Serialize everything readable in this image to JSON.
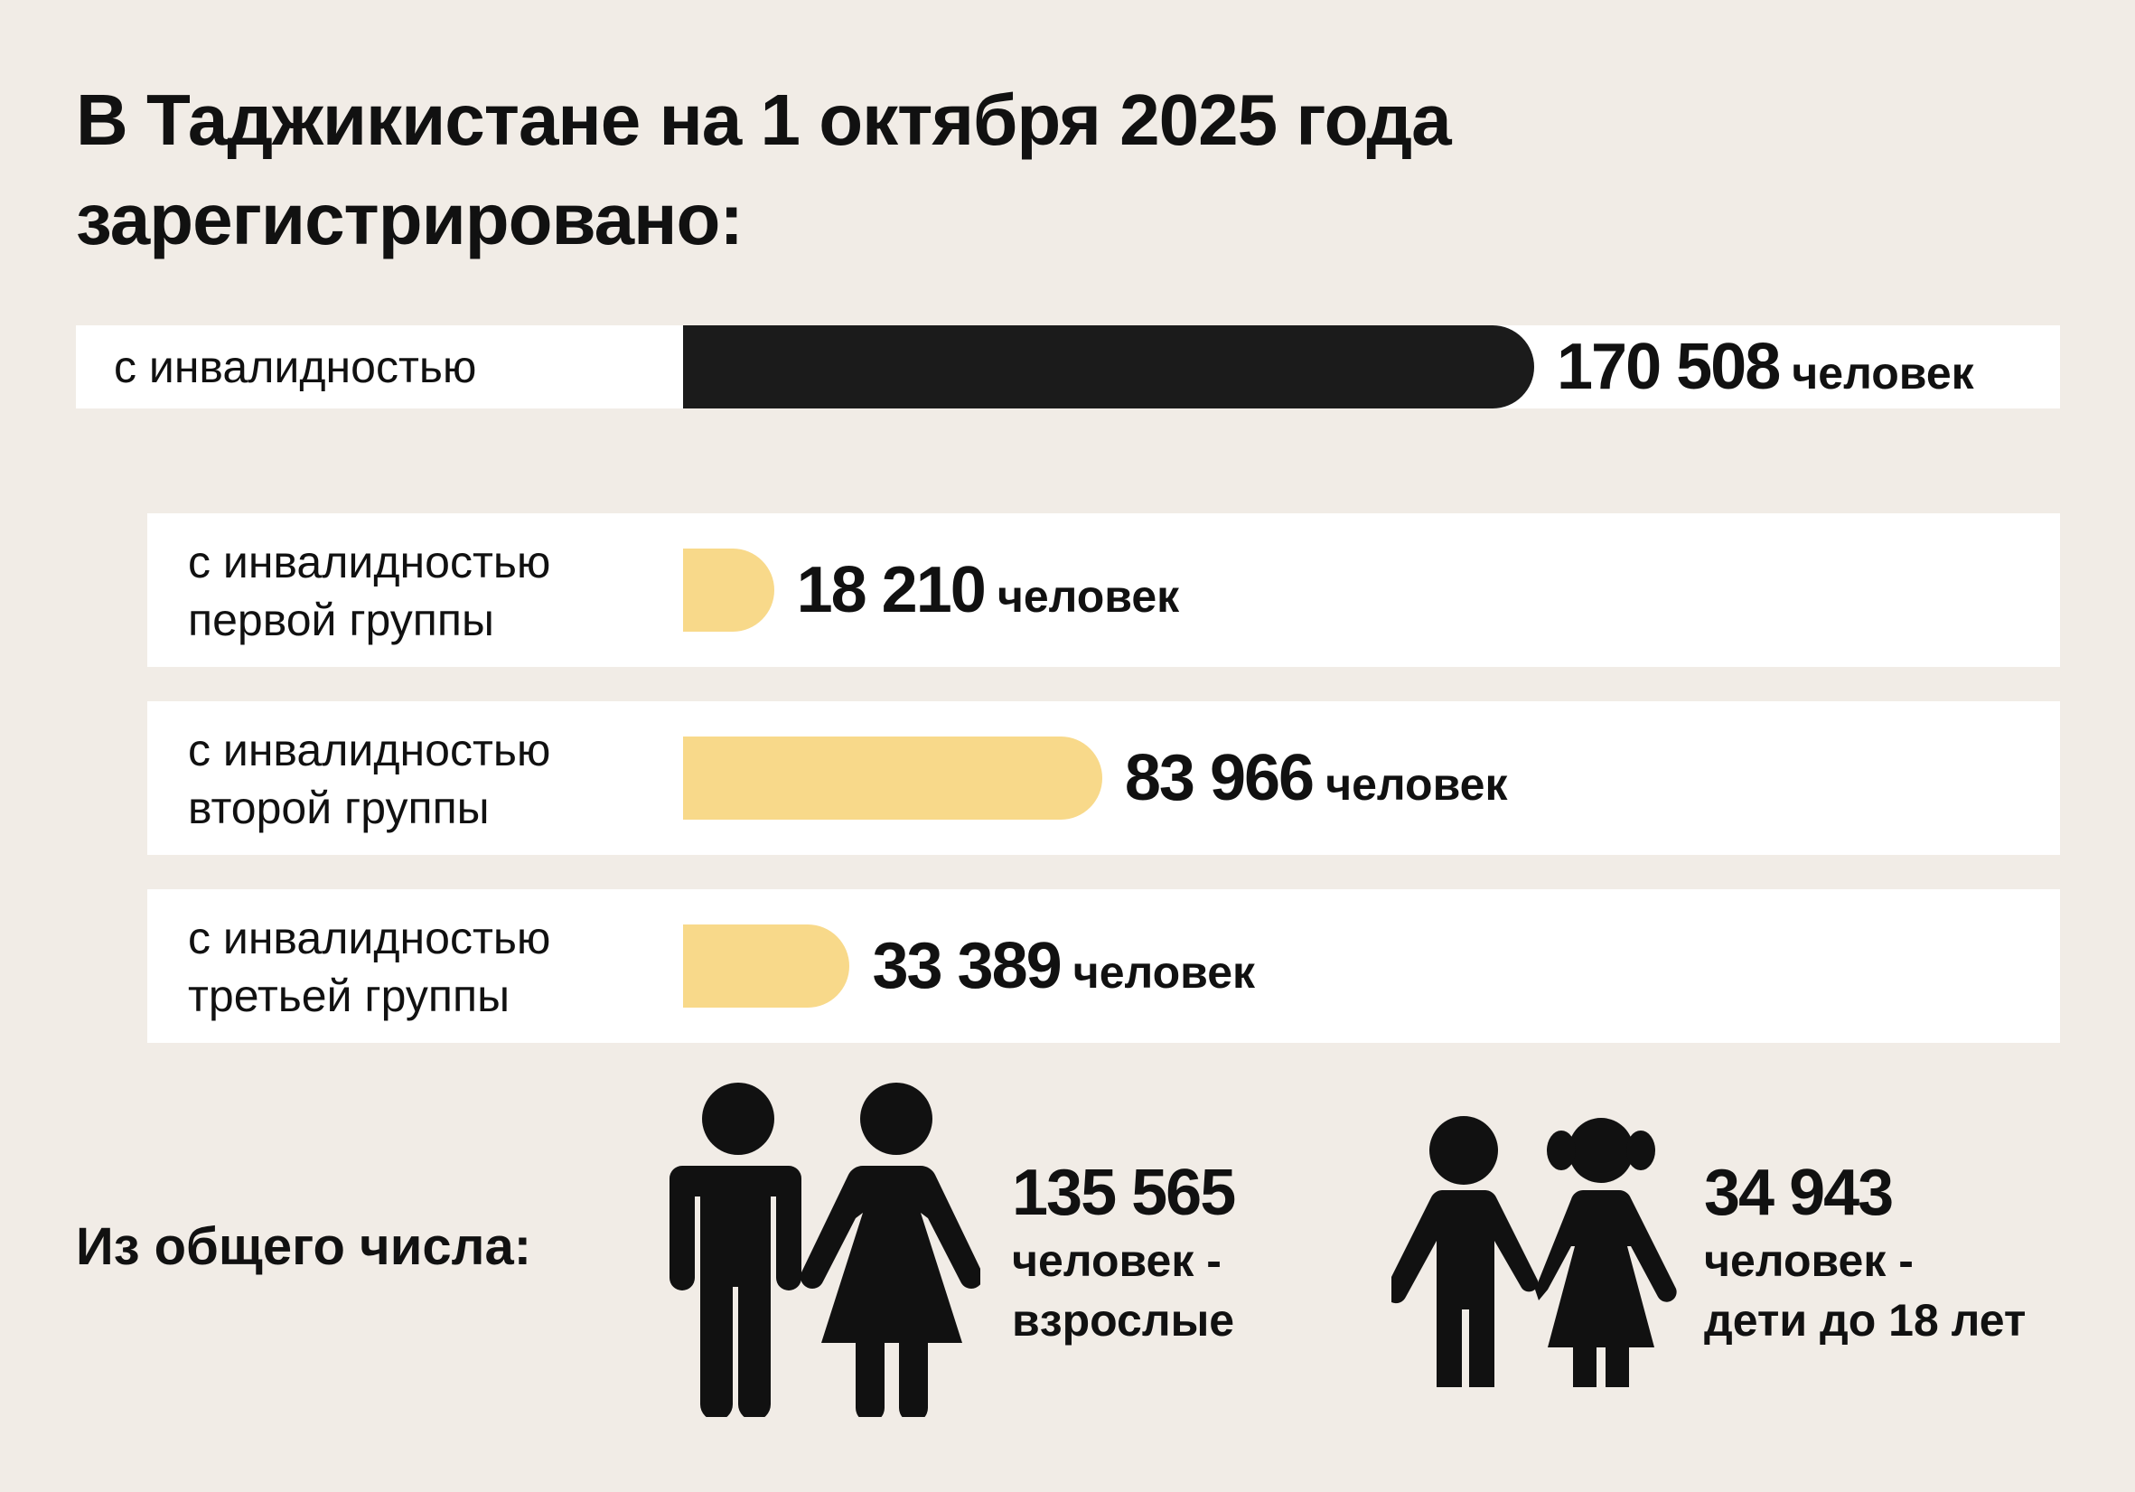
{
  "title": {
    "line1": "В Таджикистане на 1 октября 2025 года",
    "line2": "зарегистрировано:"
  },
  "chart_data": {
    "type": "bar",
    "orientation": "horizontal",
    "unit": "человек",
    "categories": [
      "с инвалидностью",
      "с инвалидностью первой группы",
      "с инвалидностью второй группы",
      "с инвалидностью третьей группы"
    ],
    "values": [
      170508,
      18210,
      83966,
      33389
    ],
    "bars": [
      {
        "label_lines": [
          "с инвалидностью"
        ],
        "value": 170508,
        "value_text": "170 508",
        "unit": "человек",
        "color": "#1b1b1b"
      },
      {
        "label_lines": [
          "с инвалидностью",
          "первой группы"
        ],
        "value": 18210,
        "value_text": "18 210",
        "unit": "человек",
        "color": "#f8d98a"
      },
      {
        "label_lines": [
          "с инвалидностью",
          "второй группы"
        ],
        "value": 83966,
        "value_text": "83 966",
        "unit": "человек",
        "color": "#f8d98a"
      },
      {
        "label_lines": [
          "с инвалидностью",
          "третьей группы"
        ],
        "value": 33389,
        "value_text": "33 389",
        "unit": "человек",
        "color": "#f8d98a"
      }
    ],
    "xlim": [
      0,
      170508
    ],
    "grid": false,
    "legend": "none"
  },
  "breakdown": {
    "label": "Из общего числа:",
    "adults": {
      "value": 135565,
      "number": "135 565",
      "line1": "человек -",
      "line2": "взрослые",
      "icon": "adults-icon"
    },
    "children": {
      "value": 34943,
      "number": "34 943",
      "line1": "человек -",
      "line2": "дети до 18 лет",
      "icon": "children-icon"
    }
  },
  "colors": {
    "background": "#f1ece6",
    "panel": "#ffffff",
    "total_bar": "#1b1b1b",
    "group_bar": "#f8d98a",
    "text": "#111111"
  }
}
